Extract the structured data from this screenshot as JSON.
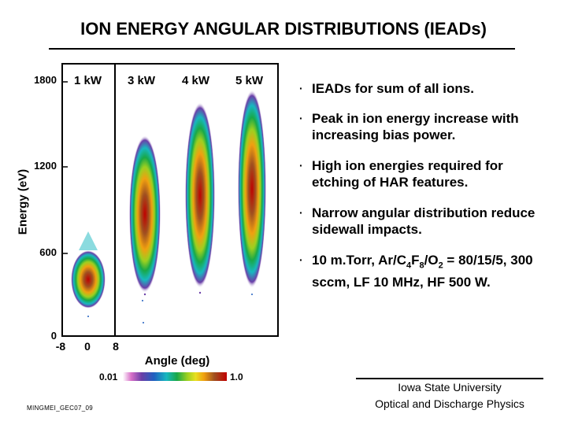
{
  "slide": {
    "title": "ION ENERGY ANGULAR DISTRIBUTIONS (IEADs)",
    "slide_id": "MINGMEI_GEC07_09"
  },
  "plot": {
    "ylabel": "Energy (eV)",
    "xlabel": "Angle (deg)",
    "yticks": [
      "1800",
      "1200",
      "600",
      "0"
    ],
    "xticks": [
      "-8",
      "0",
      "8"
    ],
    "panels": [
      "1 kW",
      "3 kW",
      "4 kW",
      "5 kW"
    ],
    "colorbar": {
      "min": "0.01",
      "max": "1.0"
    }
  },
  "bullets": {
    "b1": "IEADs for sum of all ions.",
    "b2": "Peak in ion energy increase with increasing bias power.",
    "b3": "High ion energies required for etching of HAR features.",
    "b4": "Narrow angular distribution reduce sidewall impacts.",
    "b5_parts": [
      "10 m.Torr, Ar/C",
      "4",
      "F",
      "8",
      "/O",
      "2",
      " = 80/15/5, 300 sccm, LF 10 MHz, HF 500 W."
    ]
  },
  "footer": {
    "line1": "Iowa State University",
    "line2": "Optical and Discharge Physics"
  },
  "colors": {
    "peak": "#c00000",
    "mid": "#f0a010",
    "low": "#2060c0"
  },
  "bullet_symbol": "·"
}
